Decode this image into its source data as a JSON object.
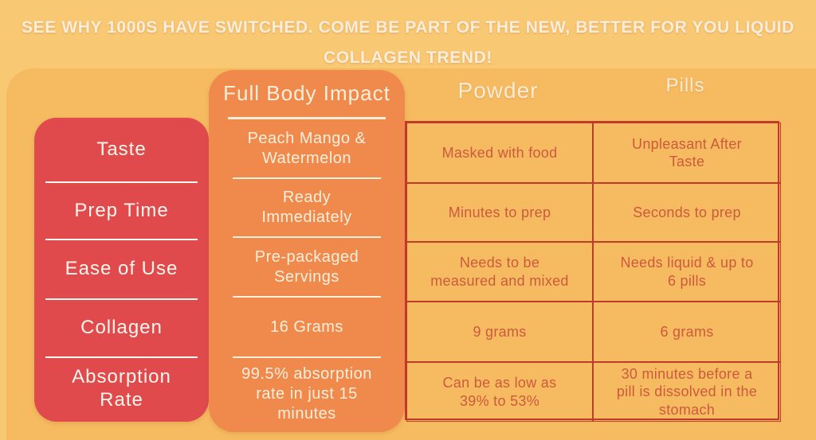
{
  "headline": {
    "line1": "SEE WHY 1000S HAVE SWITCHED. COME BE PART OF THE NEW, BETTER FOR YOU LIQUID",
    "line2": "COLLAGEN TREND!"
  },
  "colors": {
    "background": "#f9c873",
    "background_band": "#f6bb60",
    "red_panel": "#e04a4d",
    "orange_panel": "#f0894c",
    "cream_text": "#f9efdb",
    "table_text": "#cc5a3c",
    "table_border": "#c03a2c"
  },
  "chart_data": {
    "type": "table",
    "title": "SEE WHY 1000S HAVE SWITCHED. COME BE PART OF THE NEW, BETTER FOR YOU LIQUID COLLAGEN TREND!",
    "row_headers": [
      "Taste",
      "Prep Time",
      "Ease of Use",
      "Collagen",
      "Absorption Rate"
    ],
    "columns": [
      {
        "name": "Full Body Impact",
        "values": [
          "Peach Mango & Watermelon",
          "Ready Immediately",
          "Pre-packaged Servings",
          "16 Grams",
          "99.5% absorption rate in just 15 minutes"
        ]
      },
      {
        "name": "Powder",
        "values": [
          "Masked with food",
          "Minutes to prep",
          "Needs to be measured and mixed",
          "9 grams",
          "Can be as low as 39% to 53%"
        ]
      },
      {
        "name": "Pills",
        "values": [
          "Unpleasant After Taste",
          "Seconds to prep",
          "Needs liquid & up to 6 pills",
          "6 grams",
          "30 minutes before a pill is dissolved in the stomach"
        ]
      }
    ]
  }
}
